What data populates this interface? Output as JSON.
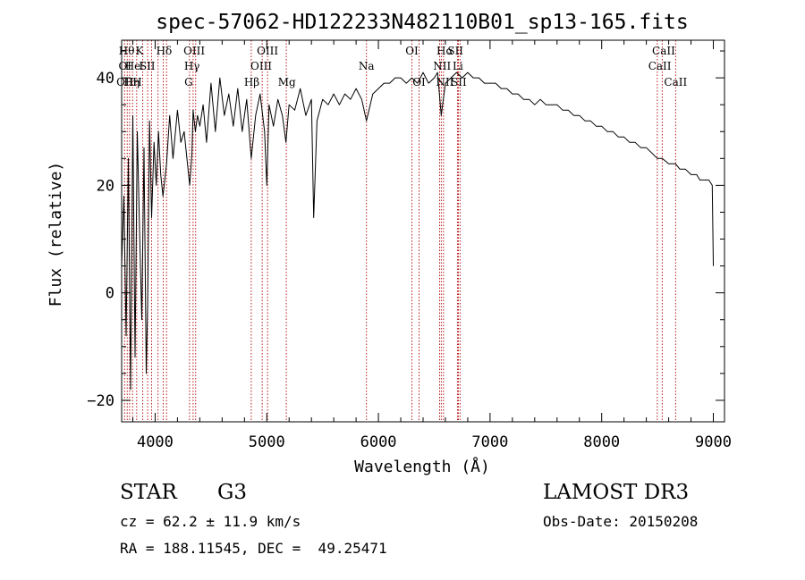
{
  "chart_data": {
    "type": "line",
    "title": "spec-57062-HD122233N482110B01_sp13-165.fits",
    "xlabel": "Wavelength (Å)",
    "ylabel": "Flux (relative)",
    "xlim": [
      3700,
      9100
    ],
    "ylim": [
      -24,
      47
    ],
    "x_ticks": [
      4000,
      5000,
      6000,
      7000,
      8000,
      9000
    ],
    "y_ticks": [
      -20,
      0,
      20,
      40
    ],
    "x_tick_labels": [
      "4000",
      "5000",
      "6000",
      "7000",
      "8000",
      "9000"
    ],
    "y_tick_labels": [
      "−20",
      "0",
      "20",
      "40"
    ],
    "series": [
      {
        "name": "flux",
        "x": [
          3700,
          3720,
          3740,
          3760,
          3780,
          3800,
          3820,
          3840,
          3860,
          3880,
          3900,
          3920,
          3933,
          3950,
          3968,
          3990,
          4010,
          4030,
          4050,
          4070,
          4102,
          4130,
          4160,
          4200,
          4230,
          4260,
          4290,
          4310,
          4330,
          4340,
          4360,
          4380,
          4400,
          4430,
          4460,
          4500,
          4540,
          4580,
          4620,
          4660,
          4700,
          4740,
          4780,
          4820,
          4861,
          4900,
          4940,
          4980,
          5000,
          5020,
          5060,
          5100,
          5140,
          5172,
          5200,
          5250,
          5300,
          5350,
          5400,
          5420,
          5450,
          5500,
          5550,
          5600,
          5650,
          5700,
          5750,
          5800,
          5850,
          5893,
          5950,
          6000,
          6050,
          6100,
          6150,
          6200,
          6250,
          6300,
          6350,
          6400,
          6450,
          6500,
          6530,
          6563,
          6600,
          6650,
          6700,
          6750,
          6800,
          6850,
          6900,
          6950,
          7000,
          7050,
          7100,
          7150,
          7200,
          7250,
          7300,
          7350,
          7400,
          7450,
          7500,
          7550,
          7600,
          7650,
          7700,
          7750,
          7800,
          7850,
          7900,
          7950,
          8000,
          8050,
          8100,
          8150,
          8200,
          8250,
          8300,
          8350,
          8400,
          8450,
          8498,
          8542,
          8600,
          8662,
          8700,
          8750,
          8800,
          8850,
          8880,
          8920,
          8960,
          8990,
          9000
        ],
        "y": [
          5,
          18,
          -8,
          25,
          -18,
          33,
          -12,
          30,
          12,
          -5,
          27,
          -15,
          -2,
          32,
          14,
          28,
          20,
          30,
          22,
          18,
          24,
          33,
          25,
          34,
          28,
          30,
          24,
          20,
          26,
          34,
          30,
          33,
          31,
          35,
          28,
          39,
          30,
          40,
          33,
          37,
          31,
          38,
          30,
          36,
          25,
          33,
          37,
          30,
          20,
          35,
          31,
          36,
          33,
          28,
          35,
          34,
          38,
          33,
          36,
          14,
          32,
          36,
          35,
          37,
          35,
          37,
          36,
          38,
          36,
          32,
          37,
          38,
          39,
          39,
          40,
          40,
          39,
          40,
          39,
          41,
          39,
          40,
          41,
          33,
          39,
          40,
          41,
          40,
          41,
          40,
          40,
          39,
          39,
          39,
          38,
          38,
          37,
          37,
          36,
          36,
          35,
          36,
          35,
          35,
          35,
          34,
          34,
          33,
          33,
          32,
          32,
          31,
          31,
          30,
          30,
          29,
          29,
          28,
          28,
          27,
          27,
          26,
          25,
          25,
          24,
          24,
          23,
          23,
          22,
          22,
          21,
          21,
          21,
          20,
          5
        ]
      }
    ],
    "lines": [
      {
        "w": 3726,
        "label": "OII"
      },
      {
        "w": 3750,
        "label": "H"
      },
      {
        "w": 3771,
        "label": "H"
      },
      {
        "w": 3798,
        "label": "Hη"
      },
      {
        "w": 3835,
        "label": "Hη"
      },
      {
        "w": 3889,
        "label": "Hζ"
      },
      {
        "w": 3933,
        "label": "K"
      },
      {
        "w": 3968,
        "label": "H"
      },
      {
        "w": 4026,
        "label": "HeI"
      },
      {
        "w": 4072,
        "label": "SII"
      },
      {
        "w": 4102,
        "label": "Hδ"
      },
      {
        "w": 4308,
        "label": "G"
      },
      {
        "w": 4340,
        "label": "Hγ"
      },
      {
        "w": 4363,
        "label": "OIII"
      },
      {
        "w": 4861,
        "label": "Hβ"
      },
      {
        "w": 4959,
        "label": "OIII"
      },
      {
        "w": 5007,
        "label": "OIII"
      },
      {
        "w": 5175,
        "label": "Mg"
      },
      {
        "w": 5893,
        "label": "Na"
      },
      {
        "w": 6300,
        "label": "OI"
      },
      {
        "w": 6364,
        "label": "OI"
      },
      {
        "w": 6548,
        "label": "NII"
      },
      {
        "w": 6563,
        "label": "Hα"
      },
      {
        "w": 6583,
        "label": "NII"
      },
      {
        "w": 6708,
        "label": "Li"
      },
      {
        "w": 6716,
        "label": "SII"
      },
      {
        "w": 6731,
        "label": "SII"
      },
      {
        "w": 8498,
        "label": "CaII"
      },
      {
        "w": 8542,
        "label": "CaII"
      },
      {
        "w": 8662,
        "label": "CaII"
      }
    ],
    "line_labels": [
      {
        "w": 3730,
        "row": 3,
        "text": "OII"
      },
      {
        "w": 3790,
        "row": 3,
        "text": "Hη"
      },
      {
        "w": 3840,
        "row": 3,
        "text": "H"
      },
      {
        "w": 3730,
        "row": 2,
        "text": "OI"
      },
      {
        "w": 3800,
        "row": 2,
        "text": "He"
      },
      {
        "w": 3875,
        "row": 2,
        "text": "I"
      },
      {
        "w": 3930,
        "row": 2,
        "text": "SII"
      },
      {
        "w": 3745,
        "row": 1,
        "text": "Hθ"
      },
      {
        "w": 3860,
        "row": 1,
        "text": "K"
      },
      {
        "w": 4080,
        "row": 1,
        "text": "Hδ"
      },
      {
        "w": 4300,
        "row": 3,
        "text": "G"
      },
      {
        "w": 4330,
        "row": 2,
        "text": "Hγ"
      },
      {
        "w": 4350,
        "row": 1,
        "text": "OIII"
      },
      {
        "w": 4866,
        "row": 3,
        "text": "Hβ"
      },
      {
        "w": 4950,
        "row": 2,
        "text": "OIII"
      },
      {
        "w": 5007,
        "row": 1,
        "text": "OIII"
      },
      {
        "w": 5180,
        "row": 3,
        "text": "Mg"
      },
      {
        "w": 5893,
        "row": 2,
        "text": "Na"
      },
      {
        "w": 6300,
        "row": 1,
        "text": "OI"
      },
      {
        "w": 6364,
        "row": 3,
        "text": "OI"
      },
      {
        "w": 6595,
        "row": 1,
        "text": "Hα"
      },
      {
        "w": 6690,
        "row": 1,
        "text": "SII"
      },
      {
        "w": 6570,
        "row": 2,
        "text": "NII"
      },
      {
        "w": 6712,
        "row": 2,
        "text": "Li"
      },
      {
        "w": 6595,
        "row": 3,
        "text": "NII"
      },
      {
        "w": 6720,
        "row": 3,
        "text": "SII"
      },
      {
        "w": 8555,
        "row": 1,
        "text": "CaII"
      },
      {
        "w": 8520,
        "row": 2,
        "text": "CaII"
      },
      {
        "w": 8662,
        "row": 3,
        "text": "CaII"
      }
    ]
  },
  "info": {
    "object_class": "STAR",
    "subclass": "G3",
    "survey": "LAMOST DR3",
    "cz": "cz = 62.2 ± 11.9 km/s",
    "obs_date": "Obs-Date: 20150208",
    "radec": "RA = 188.11545, DEC =  49.25471"
  },
  "colors": {
    "line_marker": "#b00000",
    "spectrum": "#000000",
    "axis": "#000000"
  }
}
